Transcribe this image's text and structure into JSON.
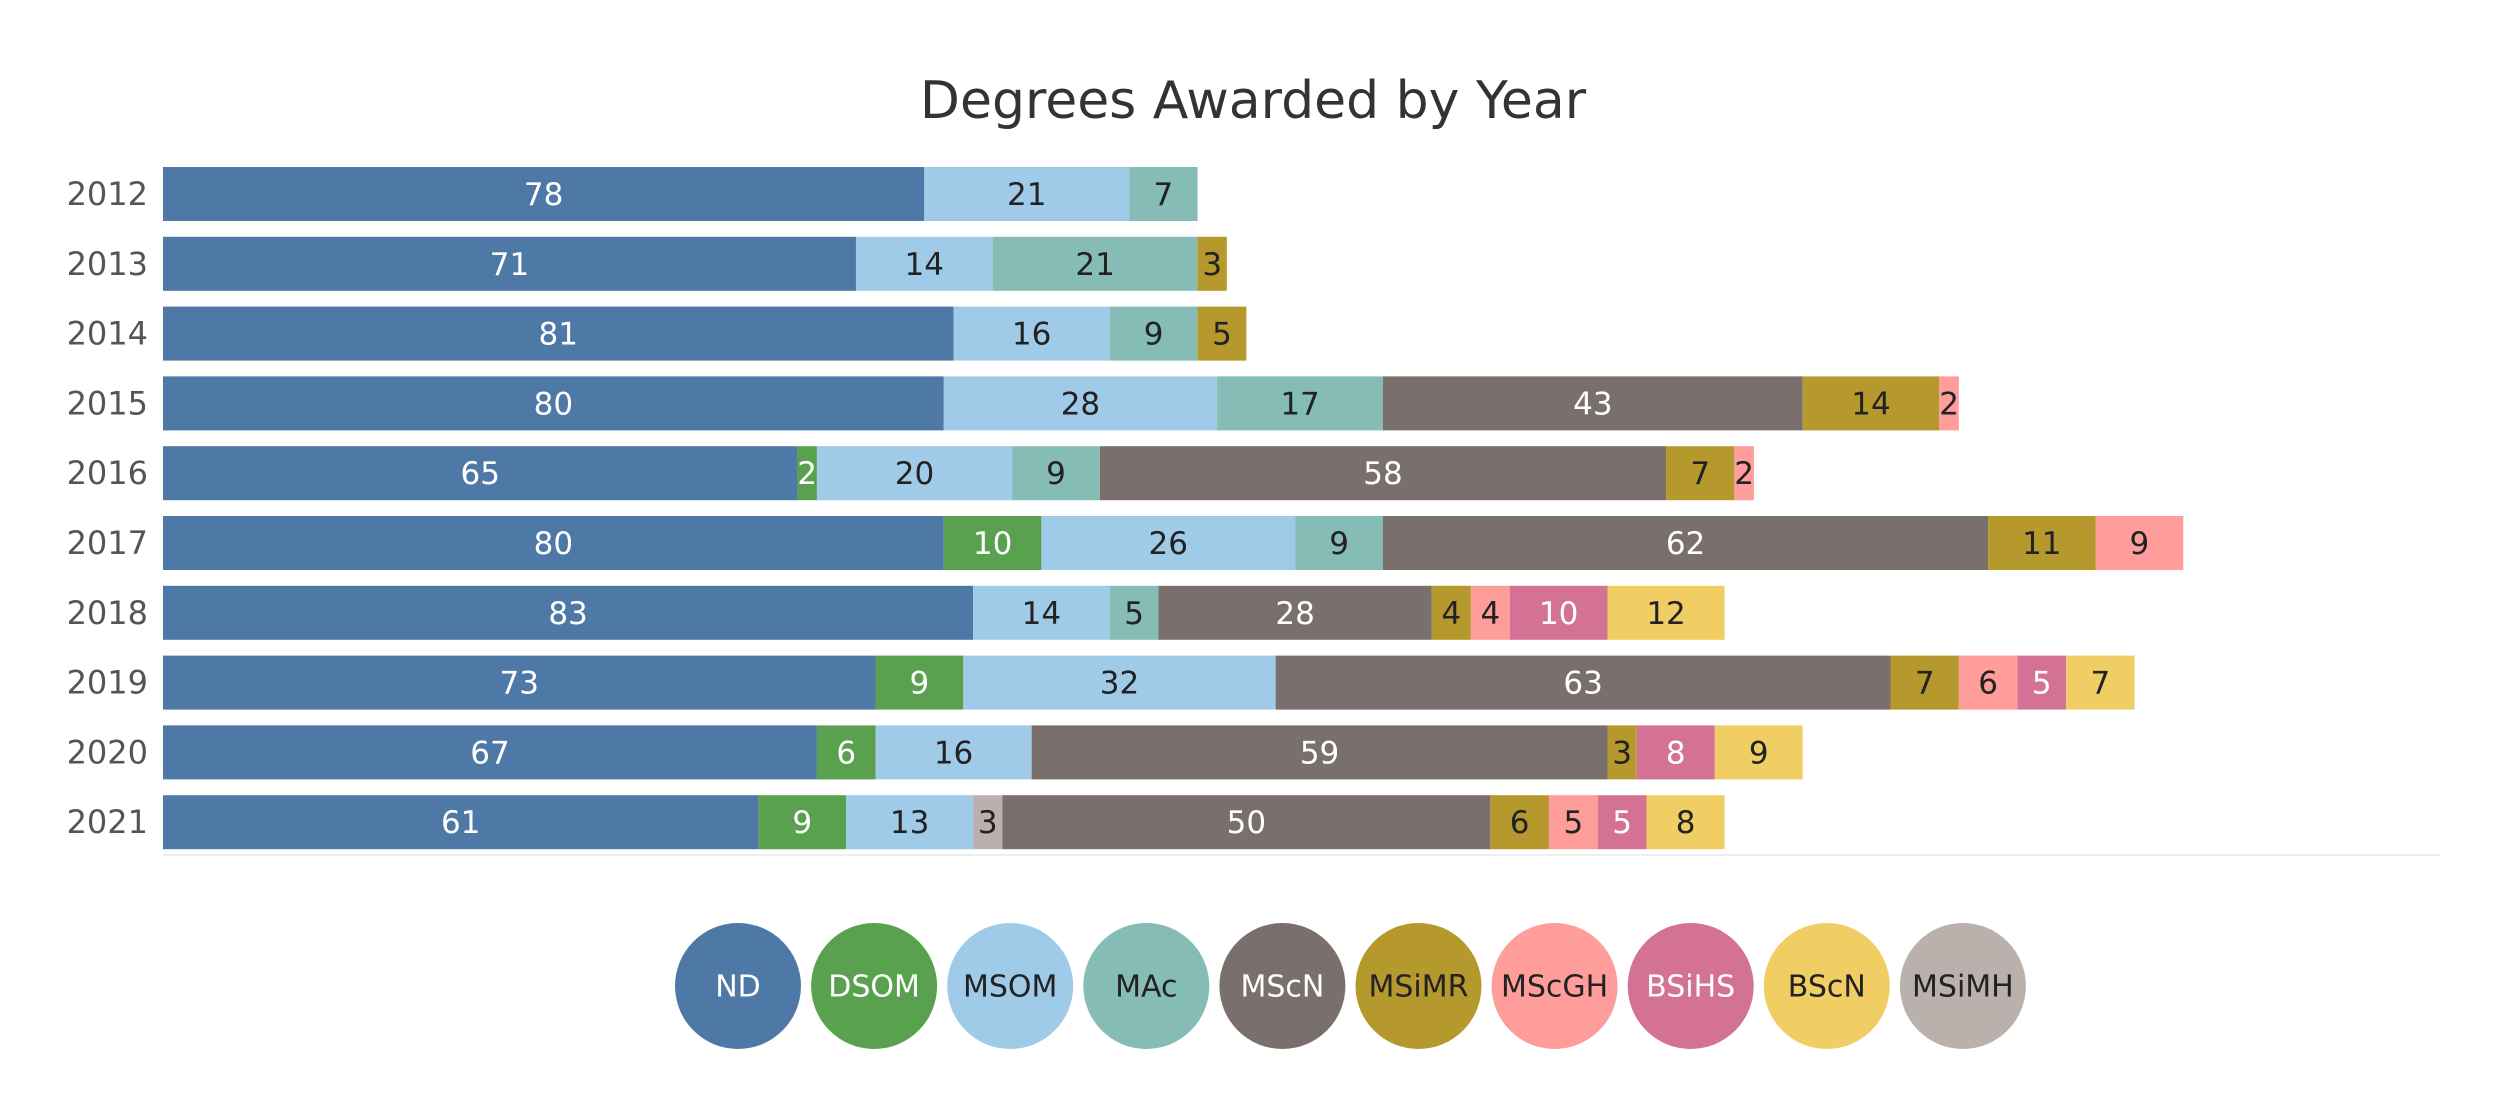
{
  "chart_data": {
    "type": "bar",
    "orientation": "horizontal",
    "stacked": true,
    "title": "Degrees Awarded by Year",
    "xlabel": "",
    "ylabel": "",
    "xlim": [
      0,
      233
    ],
    "grid": false,
    "legend_position": "bottom",
    "categories": [
      "2012",
      "2013",
      "2014",
      "2015",
      "2016",
      "2017",
      "2018",
      "2019",
      "2020",
      "2021"
    ],
    "series": [
      {
        "name": "ND",
        "color": "#4e79a7",
        "text_color": "#ffffff",
        "values": [
          78,
          71,
          81,
          80,
          65,
          80,
          83,
          73,
          67,
          61
        ]
      },
      {
        "name": "DSOM",
        "color": "#59a14f",
        "text_color": "#ffffff",
        "values": [
          0,
          0,
          0,
          0,
          2,
          10,
          0,
          9,
          6,
          9
        ]
      },
      {
        "name": "MSOM",
        "color": "#a0cbe8",
        "text_color": "#222222",
        "values": [
          21,
          14,
          16,
          28,
          20,
          26,
          14,
          32,
          16,
          13
        ]
      },
      {
        "name": "MAc",
        "color": "#86bcb6",
        "text_color": "#222222",
        "values": [
          7,
          21,
          9,
          17,
          9,
          9,
          5,
          0,
          0,
          0
        ]
      },
      {
        "name": "MScN",
        "color": "#79706e",
        "text_color": "#ffffff",
        "values": [
          0,
          0,
          0,
          43,
          58,
          62,
          28,
          63,
          59,
          50
        ]
      },
      {
        "name": "MSiMR",
        "color": "#b6992d",
        "text_color": "#222222",
        "values": [
          0,
          3,
          5,
          14,
          7,
          11,
          4,
          7,
          3,
          6
        ]
      },
      {
        "name": "MScGH",
        "color": "#ff9d9a",
        "text_color": "#222222",
        "values": [
          0,
          0,
          0,
          2,
          2,
          9,
          4,
          6,
          0,
          5
        ]
      },
      {
        "name": "BSiHS",
        "color": "#d37295",
        "text_color": "#ffffff",
        "values": [
          0,
          0,
          0,
          0,
          0,
          0,
          10,
          5,
          8,
          5
        ]
      },
      {
        "name": "BScN",
        "color": "#f1ce63",
        "text_color": "#222222",
        "values": [
          0,
          0,
          0,
          0,
          0,
          0,
          12,
          7,
          9,
          8
        ]
      },
      {
        "name": "MSiMH",
        "color": "#bab0ac",
        "text_color": "#222222",
        "values": [
          0,
          0,
          0,
          0,
          0,
          0,
          0,
          0,
          0,
          3
        ]
      }
    ],
    "stack_order": [
      "ND",
      "DSOM",
      "MSOM",
      "MSiMH",
      "MAc",
      "MScN",
      "MSiMR",
      "MScGH",
      "BSiHS",
      "BScN"
    ]
  }
}
